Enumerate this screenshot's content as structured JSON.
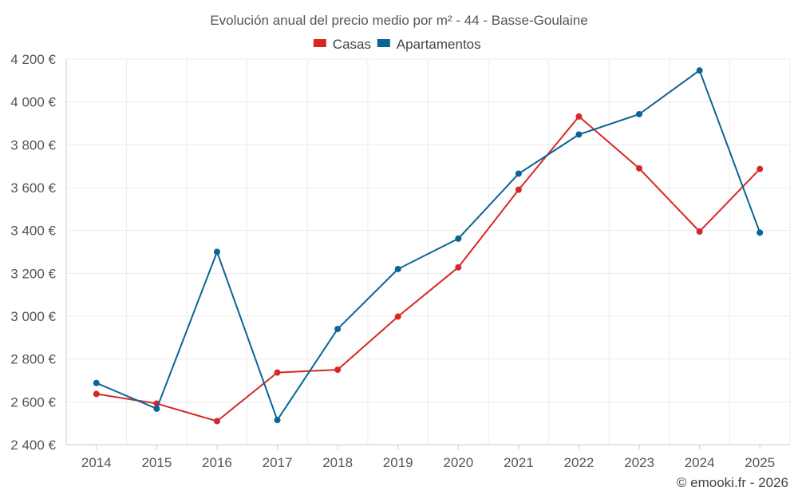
{
  "chart_data": {
    "type": "line",
    "title": "Evolución anual del precio medio por m² - 44 - Basse-Goulaine",
    "x": [
      "2014",
      "2015",
      "2016",
      "2017",
      "2018",
      "2019",
      "2020",
      "2021",
      "2022",
      "2023",
      "2024",
      "2025"
    ],
    "series": [
      {
        "name": "Casas",
        "color": "#d62728",
        "values": [
          2637,
          2592,
          2510,
          2737,
          2750,
          2998,
          3228,
          3590,
          3932,
          3690,
          3395,
          3687
        ]
      },
      {
        "name": "Apartamentos",
        "color": "#0a6496",
        "values": [
          2688,
          2568,
          3300,
          2515,
          2940,
          3220,
          3362,
          3665,
          3848,
          3943,
          4147,
          3390
        ]
      }
    ],
    "ylim": [
      2400,
      4200
    ],
    "yticks": [
      2400,
      2600,
      2800,
      3000,
      3200,
      3400,
      3600,
      3800,
      4000,
      4200
    ],
    "ytick_labels": [
      "2 400 €",
      "2 600 €",
      "2 800 €",
      "3 000 €",
      "3 200 €",
      "3 400 €",
      "3 600 €",
      "3 800 €",
      "4 000 €",
      "4 200 €"
    ],
    "xlabel": "",
    "ylabel": "",
    "grid": true,
    "legend_position": "top-center"
  },
  "credit": "© emooki.fr - 2026"
}
